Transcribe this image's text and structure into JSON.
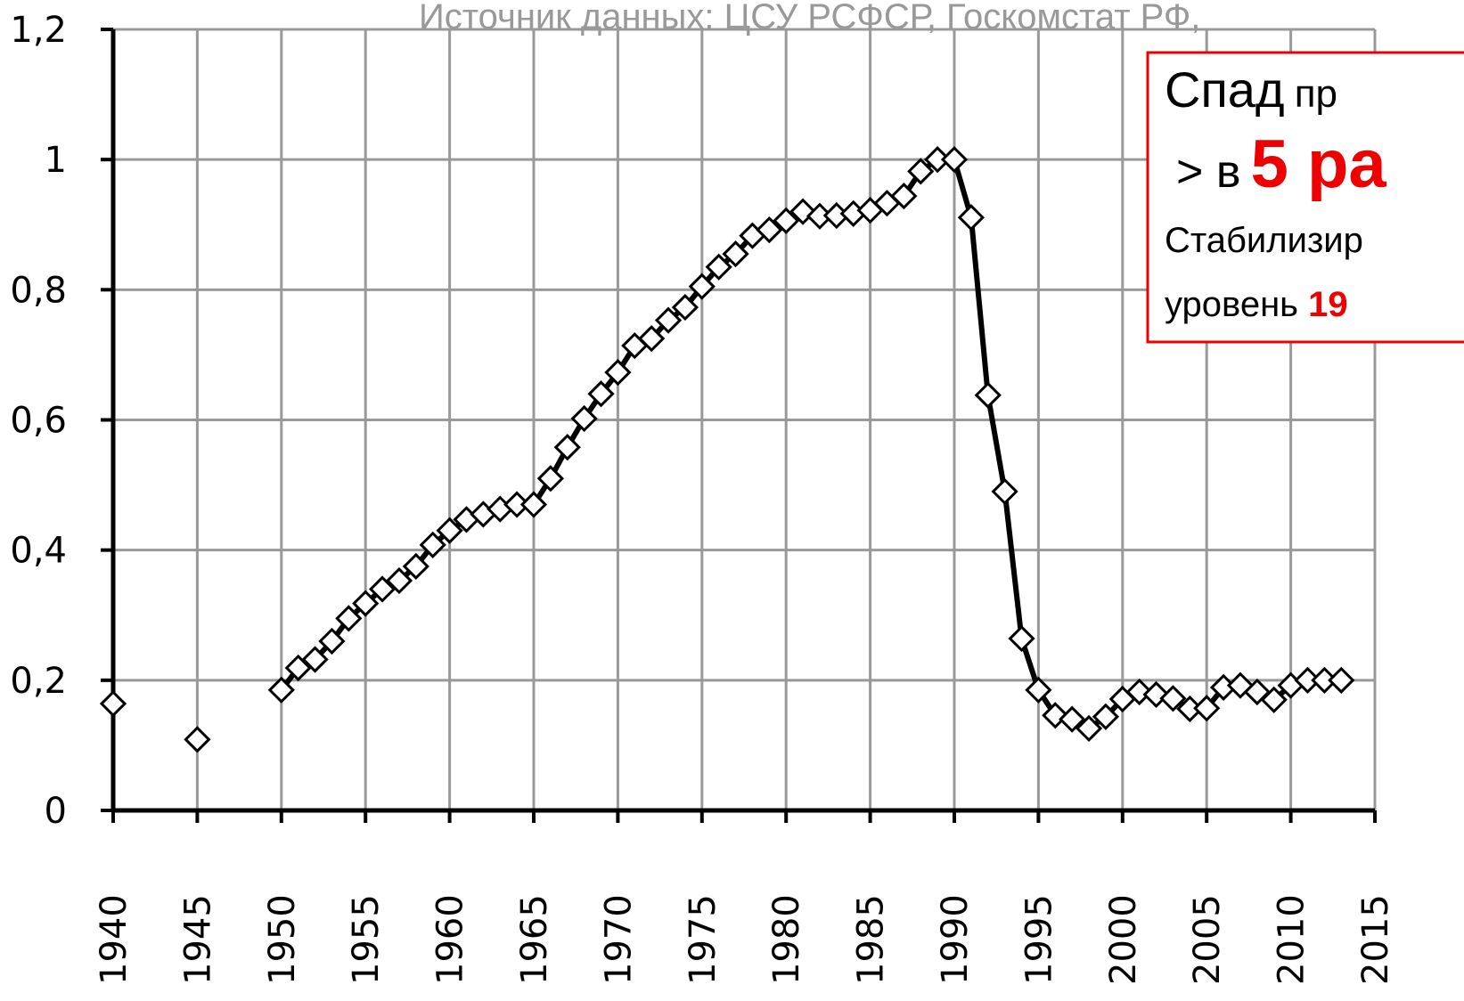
{
  "chart_data": {
    "type": "line",
    "source": "Источник данных: ЦСУ РСФСР, Госкомстат РФ,",
    "note": {
      "line1": [
        "Спад",
        "пр"
      ],
      "line2": [
        "> в",
        "5 ра"
      ],
      "line3": "Стабилизир",
      "line4": [
        "уровень",
        "19"
      ]
    },
    "series": [
      {
        "color": "#000000",
        "marker_fill": "#ffffff",
        "line": false,
        "x": [
          1940,
          1945
        ],
        "values": [
          0.164,
          0.109
        ]
      },
      {
        "color": "#000000",
        "marker_fill": "#ffffff",
        "line": true,
        "x": [
          1950,
          1951,
          1952,
          1953,
          1954,
          1955,
          1956,
          1957,
          1958,
          1959,
          1960,
          1961,
          1962,
          1963,
          1964,
          1965,
          1966,
          1967,
          1968,
          1969,
          1970,
          1971,
          1972,
          1973,
          1974,
          1975,
          1976,
          1977,
          1978,
          1979,
          1980,
          1981,
          1982,
          1983,
          1984,
          1985,
          1986,
          1987,
          1988,
          1989,
          1990,
          1991,
          1992,
          1993,
          1994,
          1995,
          1996,
          1997,
          1998,
          1999,
          2000,
          2001,
          2002,
          2003,
          2004,
          2005,
          2006,
          2007,
          2008,
          2009,
          2010,
          2011,
          2012,
          2013
        ],
        "values": [
          0.185,
          0.219,
          0.232,
          0.26,
          0.295,
          0.318,
          0.34,
          0.353,
          0.375,
          0.408,
          0.43,
          0.447,
          0.455,
          0.463,
          0.47,
          0.47,
          0.51,
          0.558,
          0.602,
          0.64,
          0.673,
          0.714,
          0.725,
          0.753,
          0.773,
          0.805,
          0.835,
          0.855,
          0.883,
          0.892,
          0.906,
          0.92,
          0.913,
          0.914,
          0.917,
          0.922,
          0.933,
          0.944,
          0.982,
          1.0,
          1.0,
          0.911,
          0.638,
          0.49,
          0.264,
          0.185,
          0.146,
          0.14,
          0.126,
          0.144,
          0.171,
          0.182,
          0.178,
          0.172,
          0.156,
          0.157,
          0.189,
          0.192,
          0.182,
          0.17,
          0.192,
          0.2,
          0.2,
          0.2
        ]
      }
    ],
    "xlim": [
      1940,
      2015
    ],
    "xticks": [
      1940,
      1945,
      1950,
      1955,
      1960,
      1965,
      1970,
      1975,
      1980,
      1985,
      1990,
      1995,
      2000,
      2005,
      2010,
      2015
    ],
    "ylim": [
      0,
      1.2
    ],
    "yticks": [
      0,
      {
        "value": 0.2,
        "label": "0,2"
      },
      {
        "value": 0.4,
        "label": "0,4"
      },
      {
        "value": 0.6,
        "label": "0,6"
      },
      {
        "value": 0.8,
        "label": "0,8"
      },
      1,
      {
        "value": 1.2,
        "label": "1,2"
      }
    ],
    "grid": true
  }
}
